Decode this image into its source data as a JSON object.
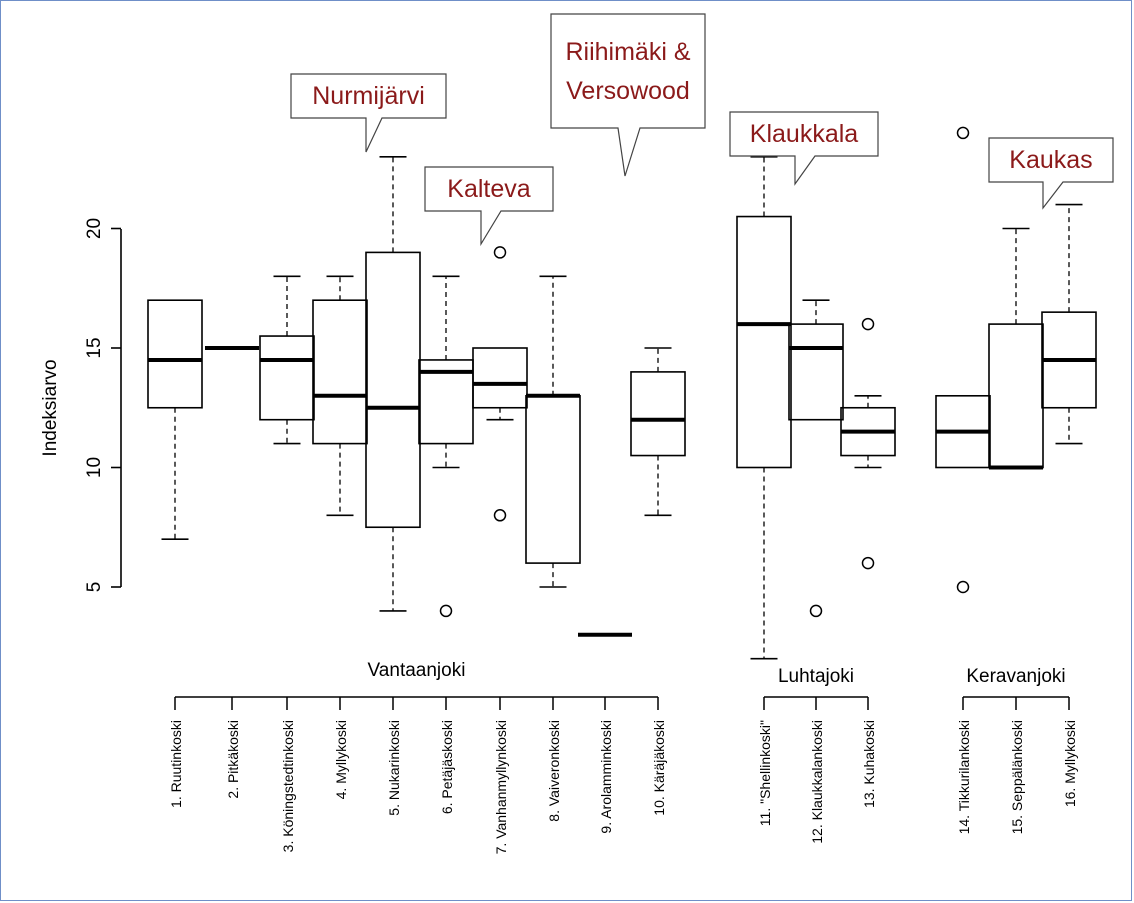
{
  "chart_data": {
    "type": "box",
    "ylabel": "Indeksiarvo",
    "ylim": [
      2,
      24
    ],
    "yticks": [
      "5",
      "10",
      "15",
      "20"
    ],
    "colors": {
      "line": "#000000",
      "annotation_text": "#8b1a1a"
    },
    "series": [
      {
        "label": "1. Ruutinkoski",
        "min": 7,
        "q1": 12.5,
        "median": 14.5,
        "q3": 17,
        "max": 17,
        "outliers": []
      },
      {
        "label": "2. Pitkäkoski",
        "min": 15,
        "q1": 15,
        "median": 15,
        "q3": 15,
        "max": 15,
        "outliers": []
      },
      {
        "label": "3. Köningstedtinkoski",
        "min": 11,
        "q1": 12,
        "median": 14.5,
        "q3": 15.5,
        "max": 18,
        "outliers": []
      },
      {
        "label": "4. Myllykoski",
        "min": 8,
        "q1": 11,
        "median": 13,
        "q3": 17,
        "max": 18,
        "outliers": []
      },
      {
        "label": "5. Nukarinkoski",
        "min": 4,
        "q1": 7.5,
        "median": 12.5,
        "q3": 19,
        "max": 23,
        "outliers": []
      },
      {
        "label": "6. Petäjäskoski",
        "min": 10,
        "q1": 11,
        "median": 14,
        "q3": 14.5,
        "max": 18,
        "outliers": [
          4
        ]
      },
      {
        "label": "7. Vanhanmyllynkoski",
        "min": 12,
        "q1": 12.5,
        "median": 13.5,
        "q3": 15,
        "max": 15,
        "outliers": [
          19,
          8
        ]
      },
      {
        "label": "8. Vaiveronkoski",
        "min": 5,
        "q1": 6,
        "median": 13,
        "q3": 13,
        "max": 18,
        "outliers": []
      },
      {
        "label": "9. Arolamminkoski",
        "min": 3,
        "q1": 3,
        "median": 3,
        "q3": 3,
        "max": 3,
        "outliers": []
      },
      {
        "label": "10. Käräjäkoski",
        "min": 8,
        "q1": 10.5,
        "median": 12,
        "q3": 14,
        "max": 15,
        "outliers": []
      },
      {
        "label": "11. \"Shellinkoski\"",
        "min": 2,
        "q1": 10,
        "median": 16,
        "q3": 20.5,
        "max": 23,
        "outliers": []
      },
      {
        "label": "12. Klaukkalankoski",
        "min": 12,
        "q1": 12,
        "median": 15,
        "q3": 16,
        "max": 17,
        "outliers": [
          4
        ]
      },
      {
        "label": "13. Kuhakoski",
        "min": 10,
        "q1": 10.5,
        "median": 11.5,
        "q3": 12.5,
        "max": 13,
        "outliers": [
          16,
          6
        ]
      },
      {
        "label": "14. Tikkurilankoski",
        "min": 10,
        "q1": 10,
        "median": 11.5,
        "q3": 13,
        "max": 13,
        "outliers": [
          24,
          5
        ]
      },
      {
        "label": "15. Seppälänkoski",
        "min": 10,
        "q1": 10,
        "median": 10,
        "q3": 16,
        "max": 20,
        "outliers": []
      },
      {
        "label": "16. Myllykoski",
        "min": 11,
        "q1": 12.5,
        "median": 14.5,
        "q3": 16.5,
        "max": 21,
        "outliers": []
      }
    ],
    "groups": [
      {
        "name": "Vantaanjoki",
        "from": 1,
        "to": 10
      },
      {
        "name": "Luhtajoki",
        "from": 11,
        "to": 13
      },
      {
        "name": "Keravanjoki",
        "from": 14,
        "to": 16
      }
    ],
    "annotations": [
      {
        "text": "Nurmijärvi",
        "target": 5
      },
      {
        "text": "Kalteva",
        "target": 7
      },
      {
        "text": "Riihimäki & Versowood",
        "target": 9
      },
      {
        "text": "Klaukkala",
        "target": 11
      },
      {
        "text": "Kaukas",
        "target": 16
      }
    ]
  }
}
